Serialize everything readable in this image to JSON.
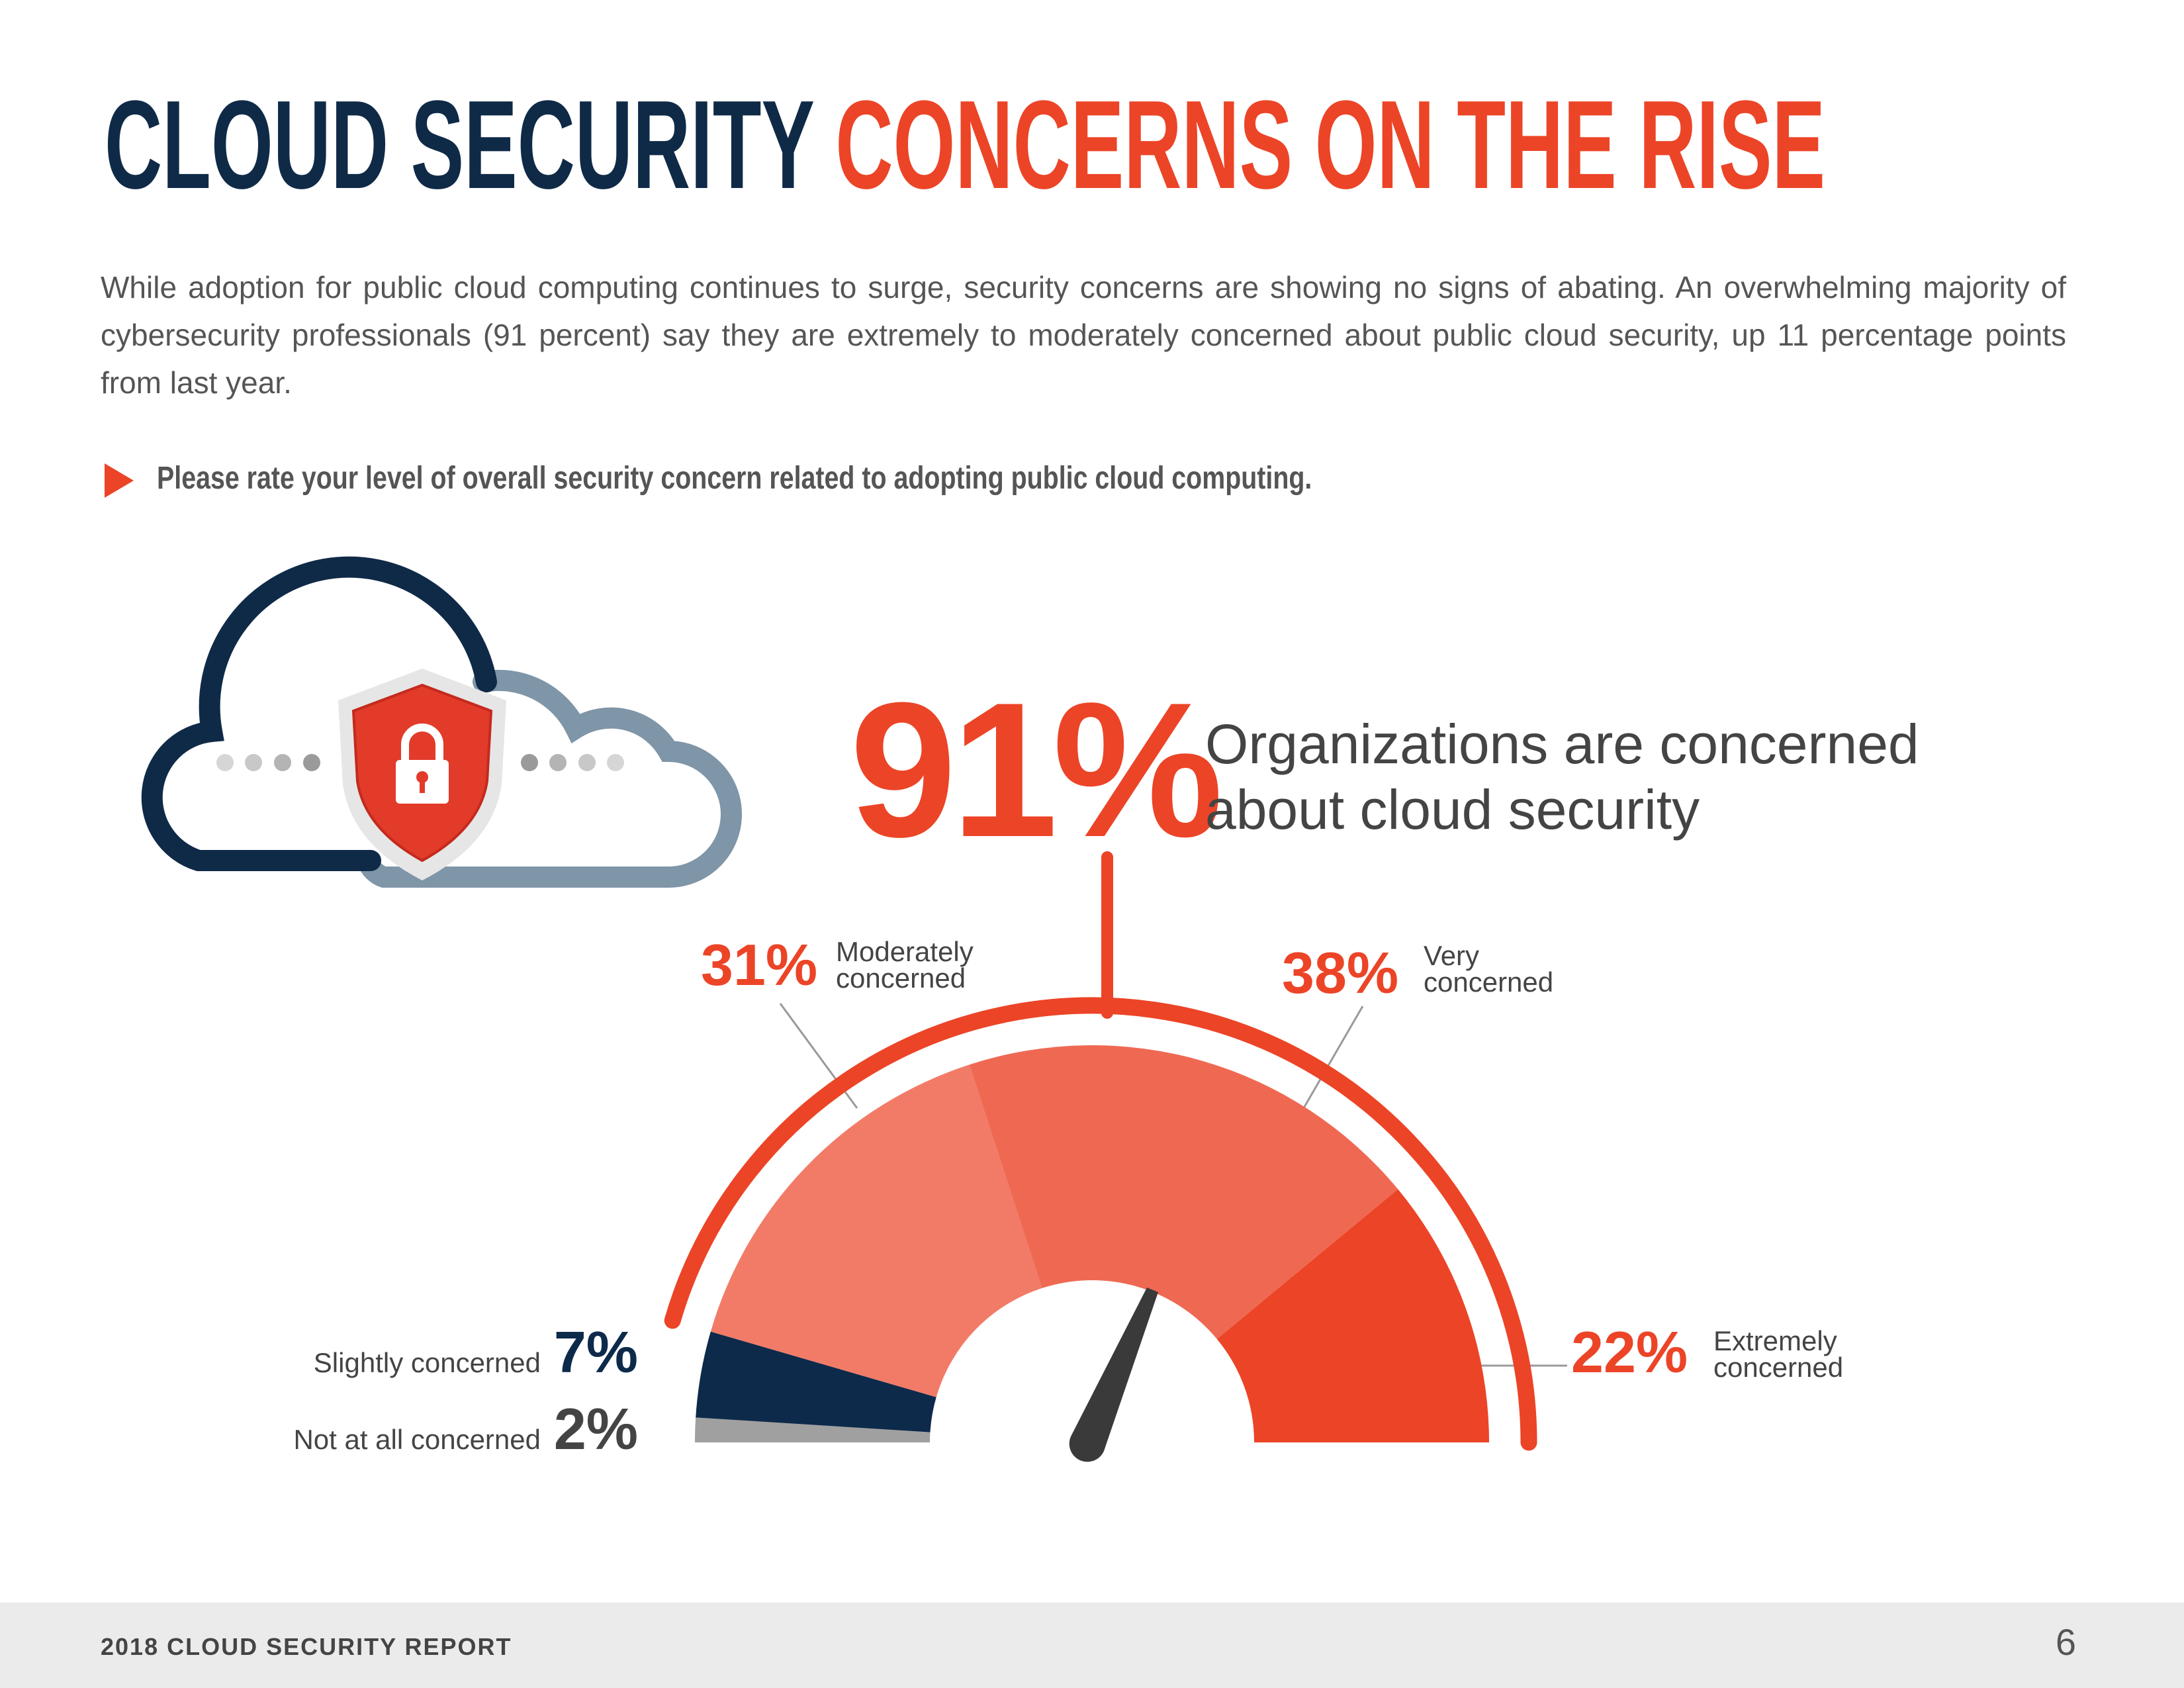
{
  "header": {
    "title_dark": "CLOUD SECURITY",
    "title_accent": "CONCERNS ON THE RISE"
  },
  "intro": "While adoption for public cloud computing continues to surge, security concerns are showing no signs of abating. An overwhelming majority of cybersecurity professionals (91 percent) say they are extremely to moderately concerned about public cloud security, up 11 percentage points from last year.",
  "question": "Please rate your level of overall security concern related to adopting public cloud computing.",
  "chart_data": {
    "type": "gauge",
    "categories": [
      "Not at all concerned",
      "Slightly concerned",
      "Moderately concerned",
      "Very concerned",
      "Extremely concerned"
    ],
    "values": [
      2,
      7,
      31,
      38,
      22
    ],
    "value_labels": [
      "2%",
      "7%",
      "31%",
      "38%",
      "22%"
    ],
    "colors": [
      "#a0a0a0",
      "#0d2a4a",
      "#f27b68",
      "#ef6952",
      "#ec4427"
    ],
    "headline": {
      "value": 91,
      "label": "91%",
      "text": "Organizations are concerned about cloud security"
    }
  },
  "footer": {
    "report": "2018 CLOUD SECURITY REPORT",
    "page": 6
  }
}
